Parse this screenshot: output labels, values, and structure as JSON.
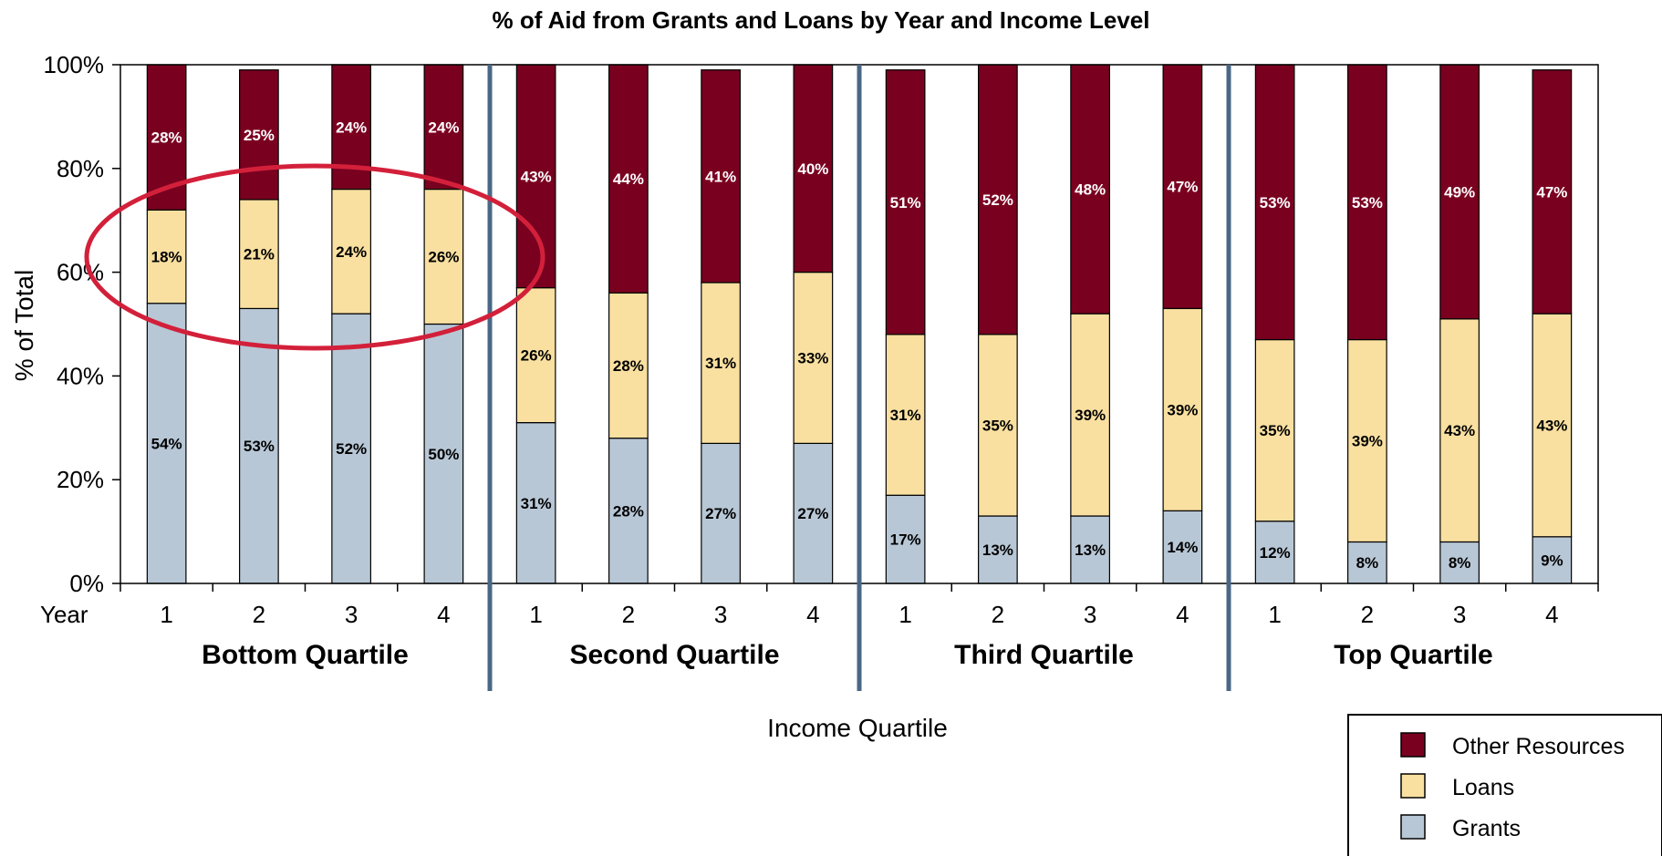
{
  "chart_data": {
    "type": "bar",
    "stacked": true,
    "title": "% of Aid from Grants and Loans by Year and Income Level",
    "ylabel": "% of Total",
    "xlabel": "Income Quartile",
    "x_row_label": "Year",
    "ylim": [
      0,
      100
    ],
    "y_ticks": [
      "0%",
      "20%",
      "40%",
      "60%",
      "80%",
      "100%"
    ],
    "groups": [
      "Bottom Quartile",
      "Second Quartile",
      "Third Quartile",
      "Top Quartile"
    ],
    "categories": [
      "1",
      "2",
      "3",
      "4"
    ],
    "series": [
      {
        "name": "Grants",
        "color": "#b8c7d6",
        "values": [
          [
            54,
            53,
            52,
            50
          ],
          [
            31,
            28,
            27,
            27
          ],
          [
            17,
            13,
            13,
            14
          ],
          [
            12,
            8,
            8,
            9
          ]
        ]
      },
      {
        "name": "Loans",
        "color": "#f9e0a0",
        "values": [
          [
            18,
            21,
            24,
            26
          ],
          [
            26,
            28,
            31,
            33
          ],
          [
            31,
            35,
            39,
            39
          ],
          [
            35,
            39,
            43,
            43
          ]
        ]
      },
      {
        "name": "Other Resources",
        "color": "#7a0020",
        "values": [
          [
            28,
            25,
            24,
            24
          ],
          [
            43,
            44,
            41,
            40
          ],
          [
            51,
            52,
            48,
            47
          ],
          [
            53,
            53,
            49,
            47
          ]
        ]
      }
    ],
    "legend_order": [
      "Other Resources",
      "Loans",
      "Grants"
    ],
    "legend_position": "bottom-right",
    "annotation_color": "#d3203a",
    "grid": false
  }
}
